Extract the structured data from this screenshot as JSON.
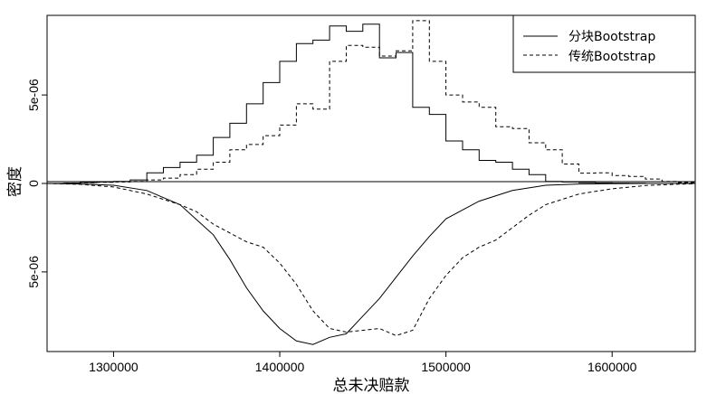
{
  "chart_data": {
    "type": "line",
    "xlabel": "总未决赔款",
    "ylabel": "密度",
    "xlim": [
      1260000,
      1650000
    ],
    "ylim": [
      -9.5e-06,
      9.5e-06
    ],
    "x_ticks": [
      1300000,
      1400000,
      1500000,
      1600000
    ],
    "x_tick_labels": [
      "1300000",
      "1400000",
      "1500000",
      "1600000"
    ],
    "y_ticks": [
      5e-06,
      0,
      -5e-06
    ],
    "y_tick_labels": [
      "5e-06",
      "0",
      "5e-06"
    ],
    "grid": false,
    "legend_position": "top-right",
    "legend": [
      {
        "label": "分块Bootstrap",
        "style": "solid"
      },
      {
        "label": "传统Bootstrap",
        "style": "dashed"
      }
    ],
    "series": [
      {
        "name": "分块Bootstrap",
        "kind": "histogram",
        "style": "solid",
        "bin_width": 10000,
        "bin_starts": [
          1260000,
          1270000,
          1280000,
          1290000,
          1300000,
          1310000,
          1320000,
          1330000,
          1340000,
          1350000,
          1360000,
          1370000,
          1380000,
          1390000,
          1400000,
          1410000,
          1420000,
          1430000,
          1440000,
          1450000,
          1460000,
          1470000,
          1480000,
          1490000,
          1500000,
          1510000,
          1520000,
          1530000,
          1540000,
          1550000,
          1560000,
          1570000,
          1580000,
          1590000,
          1600000,
          1610000,
          1620000,
          1630000,
          1640000
        ],
        "density": [
          0,
          2e-08,
          5e-08,
          8e-08,
          1.2e-07,
          2e-07,
          6e-07,
          9e-07,
          1.2e-06,
          1.6e-06,
          2.6e-06,
          3.4e-06,
          4.5e-06,
          5.7e-06,
          6.9e-06,
          7.9e-06,
          8.1e-06,
          8.9e-06,
          8.6e-06,
          9e-06,
          7.1e-06,
          7.4e-06,
          4.3e-06,
          3.9e-06,
          2.4e-06,
          1.9e-06,
          1.3e-06,
          1.2e-06,
          8e-07,
          5e-07,
          1.2e-07,
          8e-08,
          5e-08,
          3e-08,
          2e-08,
          1e-08,
          0,
          0,
          0
        ]
      },
      {
        "name": "传统Bootstrap",
        "kind": "histogram",
        "style": "dashed",
        "bin_width": 10000,
        "bin_starts": [
          1260000,
          1270000,
          1280000,
          1290000,
          1300000,
          1310000,
          1320000,
          1330000,
          1340000,
          1350000,
          1360000,
          1370000,
          1380000,
          1390000,
          1400000,
          1410000,
          1420000,
          1430000,
          1440000,
          1450000,
          1460000,
          1470000,
          1480000,
          1490000,
          1500000,
          1510000,
          1520000,
          1530000,
          1540000,
          1550000,
          1560000,
          1570000,
          1580000,
          1590000,
          1600000,
          1610000,
          1620000,
          1630000,
          1640000
        ],
        "density": [
          0,
          2e-08,
          4e-08,
          6e-08,
          8e-08,
          1.2e-07,
          2e-07,
          3e-07,
          5e-07,
          8e-07,
          1.2e-06,
          1.9e-06,
          2.2e-06,
          2.7e-06,
          3.3e-06,
          4.5e-06,
          4.2e-06,
          6.9e-06,
          7.8e-06,
          7.7e-06,
          7.2e-06,
          7.5e-06,
          9.2e-06,
          6.9e-06,
          5e-06,
          4.6e-06,
          4.3e-06,
          3.2e-06,
          3.1e-06,
          2.3e-06,
          1.9e-06,
          1.1e-06,
          5.8e-07,
          6e-07,
          4.5e-07,
          4e-07,
          2.5e-07,
          1.2e-07,
          5e-08
        ]
      },
      {
        "name": "分块Bootstrap",
        "kind": "mirrored-density",
        "style": "solid",
        "x": [
          1260000,
          1280000,
          1300000,
          1320000,
          1340000,
          1360000,
          1370000,
          1380000,
          1390000,
          1400000,
          1410000,
          1420000,
          1430000,
          1440000,
          1450000,
          1460000,
          1470000,
          1480000,
          1490000,
          1500000,
          1520000,
          1540000,
          1560000,
          1580000,
          1600000,
          1620000,
          1650000
        ],
        "y": [
          0,
          -3e-08,
          -1e-07,
          -4e-07,
          -1.2e-06,
          -2.9e-06,
          -4.3e-06,
          -5.9e-06,
          -7.2e-06,
          -8.2e-06,
          -8.9e-06,
          -9.1e-06,
          -8.7e-06,
          -8.5e-06,
          -7.5e-06,
          -6.5e-06,
          -5.3e-06,
          -4.1e-06,
          -3e-06,
          -2e-06,
          -1e-06,
          -4e-07,
          -1e-07,
          -3e-08,
          -1e-08,
          0,
          0
        ]
      },
      {
        "name": "传统Bootstrap",
        "kind": "mirrored-density",
        "style": "dashed",
        "x": [
          1260000,
          1280000,
          1300000,
          1320000,
          1340000,
          1350000,
          1360000,
          1370000,
          1380000,
          1390000,
          1400000,
          1410000,
          1420000,
          1430000,
          1440000,
          1450000,
          1460000,
          1470000,
          1480000,
          1490000,
          1500000,
          1510000,
          1520000,
          1530000,
          1540000,
          1550000,
          1560000,
          1580000,
          1600000,
          1620000,
          1640000,
          1650000
        ],
        "y": [
          0,
          -5e-08,
          -2e-07,
          -6e-07,
          -1.2e-06,
          -1.6e-06,
          -2.3e-06,
          -2.8e-06,
          -3.3e-06,
          -3.6e-06,
          -4.5e-06,
          -5.7e-06,
          -7.2e-06,
          -8.2e-06,
          -8.4e-06,
          -8.3e-06,
          -8.2e-06,
          -8.6e-06,
          -8.3e-06,
          -6.5e-06,
          -5.2e-06,
          -4.2e-06,
          -3.6e-06,
          -3.2e-06,
          -2.5e-06,
          -1.8e-06,
          -1.2e-06,
          -6e-07,
          -3e-07,
          -1.2e-07,
          -4e-08,
          -2e-08
        ]
      }
    ]
  }
}
